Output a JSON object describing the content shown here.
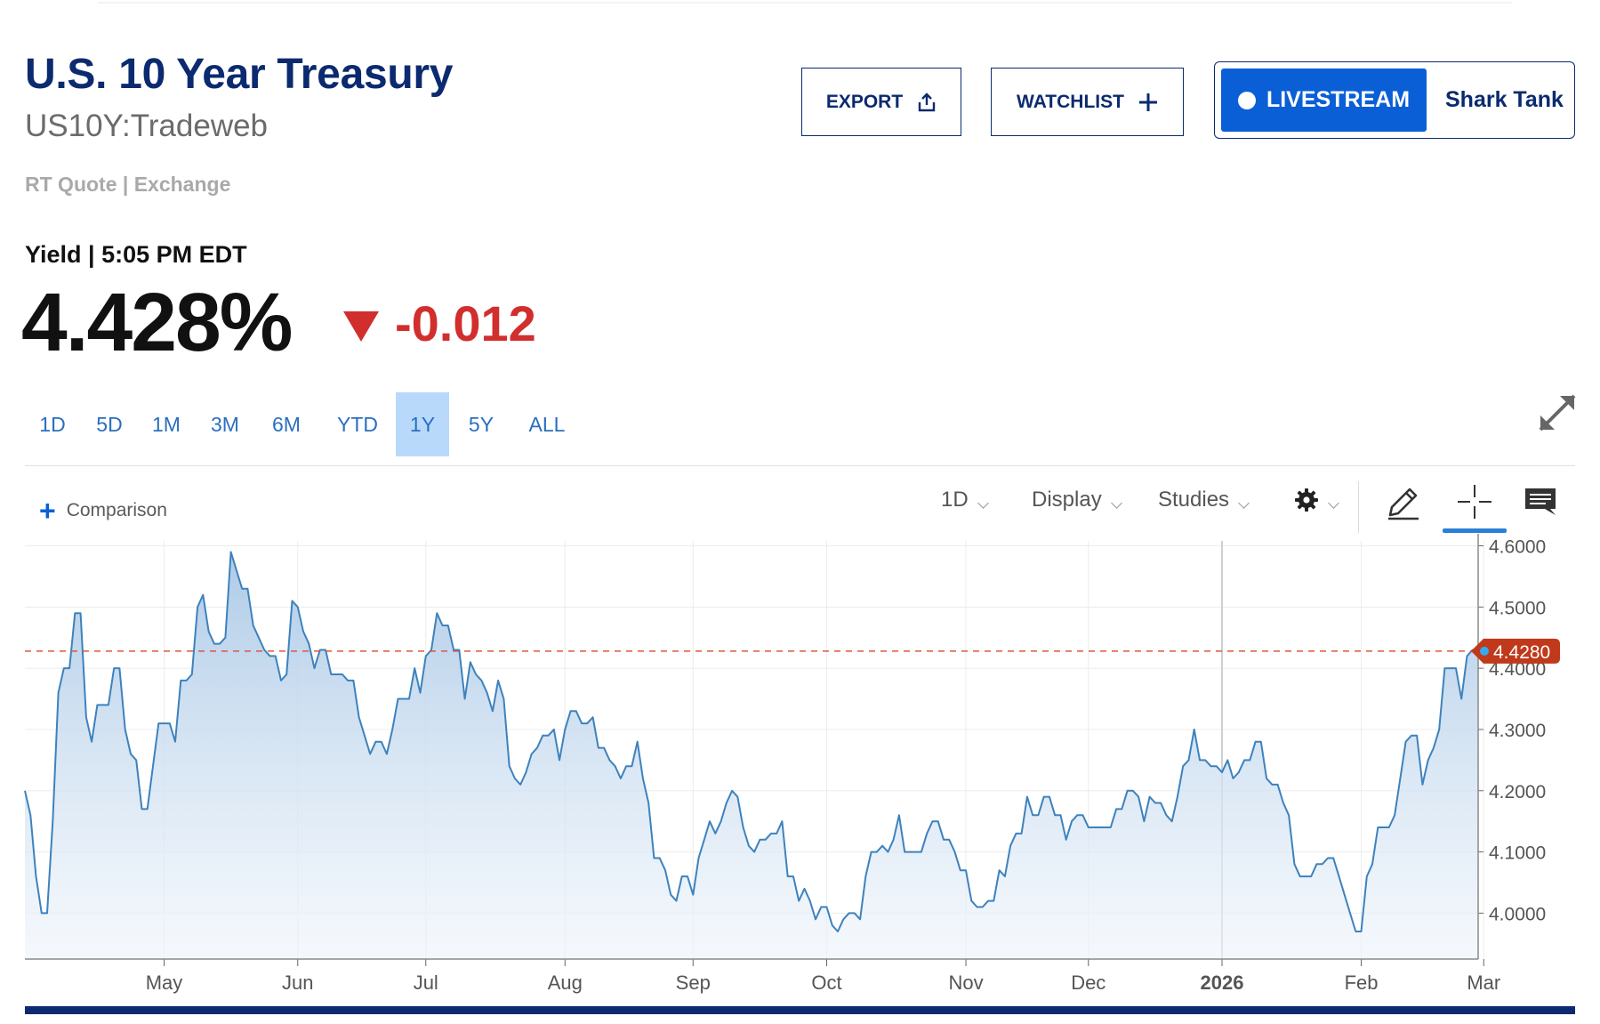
{
  "header": {
    "title": "U.S. 10 Year Treasury",
    "symbol": "US10Y:Tradeweb",
    "rt_quote": "RT Quote | Exchange",
    "yield_label": "Yield | 5:05 PM EDT",
    "price": "4.428%",
    "change": "-0.012"
  },
  "buttons": {
    "export": "EXPORT",
    "watchlist": "WATCHLIST",
    "livestream": "LIVESTREAM",
    "shark_tank": "Shark Tank"
  },
  "ranges": [
    {
      "label": "1D",
      "active": false
    },
    {
      "label": "5D",
      "active": false
    },
    {
      "label": "1M",
      "active": false
    },
    {
      "label": "3M",
      "active": false
    },
    {
      "label": "6M",
      "active": false
    },
    {
      "label": "YTD",
      "active": false
    },
    {
      "label": "1Y",
      "active": true
    },
    {
      "label": "5Y",
      "active": false
    },
    {
      "label": "ALL",
      "active": false
    }
  ],
  "toolbar": {
    "comparison": "Comparison",
    "interval": "1D",
    "display": "Display",
    "studies": "Studies"
  },
  "colors": {
    "brand_navy": "#0b2a6f",
    "live_blue": "#0a5fd6",
    "negative_red": "#d12e2e",
    "line_blue": "#3d82bd",
    "price_tag_red": "#c0391b"
  },
  "chart_data": {
    "type": "area",
    "title": "",
    "xlabel": "",
    "ylabel": "",
    "ylim": [
      3.925,
      4.608
    ],
    "y_ticks": [
      "4.6000",
      "4.5000",
      "4.4000",
      "4.3000",
      "4.2000",
      "4.1000",
      "4.0000"
    ],
    "x_tick_labels": [
      "May",
      "Jun",
      "Jul",
      "Aug",
      "Sep",
      "Oct",
      "Nov",
      "Dec",
      "2026",
      "Feb",
      "Mar"
    ],
    "x_ticks": [
      {
        "label": "May",
        "i": 25
      },
      {
        "label": "Jun",
        "i": 49
      },
      {
        "label": "Jul",
        "i": 72
      },
      {
        "label": "Aug",
        "i": 97
      },
      {
        "label": "Sep",
        "i": 120
      },
      {
        "label": "Oct",
        "i": 144
      },
      {
        "label": "Nov",
        "i": 169
      },
      {
        "label": "Dec",
        "i": 191
      },
      {
        "label": "2026",
        "i": 215
      },
      {
        "label": "Feb",
        "i": 240
      },
      {
        "label": "Mar",
        "i": 262
      }
    ],
    "last_value": 4.428,
    "last_value_label": "4.4280",
    "grid": true,
    "series": [
      {
        "values": [
          4.2,
          4.16,
          4.06,
          4.0,
          4.0,
          4.15,
          4.36,
          4.4,
          4.4,
          4.49,
          4.49,
          4.32,
          4.28,
          4.34,
          4.34,
          4.34,
          4.4,
          4.4,
          4.3,
          4.26,
          4.25,
          4.17,
          4.17,
          4.24,
          4.31,
          4.31,
          4.31,
          4.28,
          4.38,
          4.38,
          4.39,
          4.5,
          4.52,
          4.46,
          4.44,
          4.44,
          4.45,
          4.59,
          4.56,
          4.53,
          4.53,
          4.47,
          4.45,
          4.43,
          4.42,
          4.42,
          4.38,
          4.39,
          4.51,
          4.5,
          4.46,
          4.44,
          4.4,
          4.43,
          4.43,
          4.39,
          4.39,
          4.39,
          4.38,
          4.38,
          4.32,
          4.29,
          4.26,
          4.28,
          4.28,
          4.26,
          4.3,
          4.35,
          4.35,
          4.35,
          4.4,
          4.36,
          4.42,
          4.43,
          4.49,
          4.47,
          4.47,
          4.43,
          4.43,
          4.35,
          4.41,
          4.39,
          4.38,
          4.36,
          4.33,
          4.38,
          4.35,
          4.24,
          4.22,
          4.21,
          4.23,
          4.26,
          4.27,
          4.29,
          4.29,
          4.3,
          4.25,
          4.3,
          4.33,
          4.33,
          4.31,
          4.31,
          4.32,
          4.27,
          4.27,
          4.25,
          4.24,
          4.22,
          4.24,
          4.24,
          4.28,
          4.22,
          4.18,
          4.09,
          4.09,
          4.07,
          4.03,
          4.02,
          4.06,
          4.06,
          4.03,
          4.09,
          4.12,
          4.15,
          4.13,
          4.15,
          4.18,
          4.2,
          4.19,
          4.14,
          4.11,
          4.1,
          4.12,
          4.12,
          4.13,
          4.13,
          4.15,
          4.06,
          4.06,
          4.02,
          4.04,
          4.02,
          3.99,
          4.01,
          4.01,
          3.98,
          3.97,
          3.99,
          4.0,
          4.0,
          3.99,
          4.06,
          4.1,
          4.1,
          4.11,
          4.1,
          4.12,
          4.16,
          4.1,
          4.1,
          4.1,
          4.1,
          4.13,
          4.15,
          4.15,
          4.12,
          4.12,
          4.1,
          4.07,
          4.07,
          4.02,
          4.01,
          4.01,
          4.02,
          4.02,
          4.07,
          4.06,
          4.11,
          4.13,
          4.13,
          4.19,
          4.16,
          4.16,
          4.19,
          4.19,
          4.16,
          4.16,
          4.12,
          4.15,
          4.16,
          4.16,
          4.14,
          4.14,
          4.14,
          4.14,
          4.14,
          4.17,
          4.17,
          4.2,
          4.2,
          4.19,
          4.15,
          4.19,
          4.18,
          4.18,
          4.16,
          4.15,
          4.19,
          4.24,
          4.25,
          4.3,
          4.25,
          4.25,
          4.24,
          4.24,
          4.23,
          4.25,
          4.22,
          4.23,
          4.25,
          4.25,
          4.28,
          4.28,
          4.22,
          4.21,
          4.21,
          4.18,
          4.16,
          4.08,
          4.06,
          4.06,
          4.06,
          4.08,
          4.08,
          4.09,
          4.09,
          4.06,
          4.03,
          4.0,
          3.97,
          3.97,
          4.06,
          4.08,
          4.14,
          4.14,
          4.14,
          4.16,
          4.22,
          4.28,
          4.29,
          4.29,
          4.21,
          4.25,
          4.27,
          4.3,
          4.4,
          4.4,
          4.4,
          4.35,
          4.42,
          4.43,
          4.428
        ]
      }
    ]
  }
}
